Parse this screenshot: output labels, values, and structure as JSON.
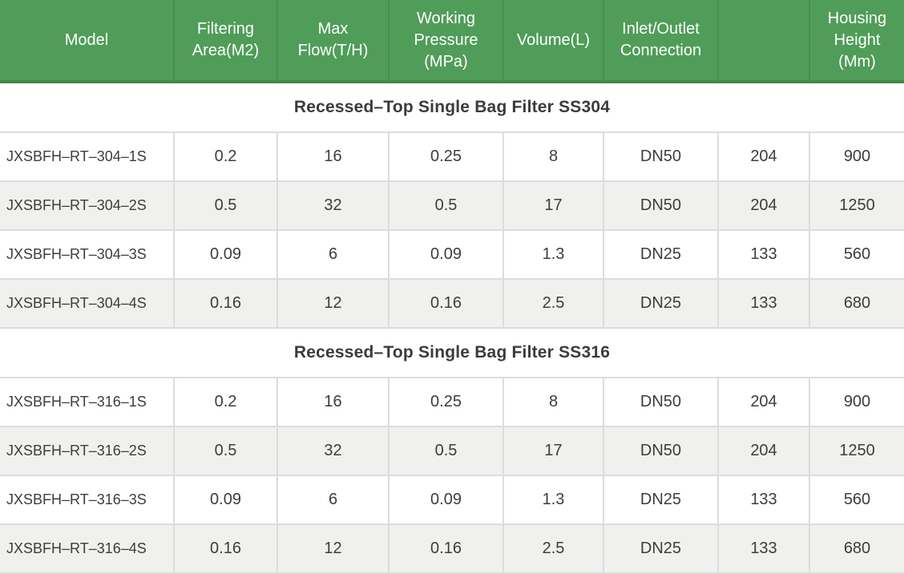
{
  "table": {
    "columns": [
      {
        "label": "Model"
      },
      {
        "label": "Filtering Area(M2)"
      },
      {
        "label": "Max Flow(T/H)"
      },
      {
        "label": "Working Pressure (MPa)"
      },
      {
        "label": "Volume(L)"
      },
      {
        "label": "Inlet/Outlet Connection"
      },
      {
        "label": ""
      },
      {
        "label": "Housing Height (Mm)"
      }
    ],
    "sections": [
      {
        "title": "Recessed–Top Single Bag Filter SS304",
        "rows": [
          [
            "JXSBFH–RT–304–1S",
            "0.2",
            "16",
            "0.25",
            "8",
            "DN50",
            "204",
            "900"
          ],
          [
            "JXSBFH–RT–304–2S",
            "0.5",
            "32",
            "0.5",
            "17",
            "DN50",
            "204",
            "1250"
          ],
          [
            "JXSBFH–RT–304–3S",
            "0.09",
            "6",
            "0.09",
            "1.3",
            "DN25",
            "133",
            "560"
          ],
          [
            "JXSBFH–RT–304–4S",
            "0.16",
            "12",
            "0.16",
            "2.5",
            "DN25",
            "133",
            "680"
          ]
        ]
      },
      {
        "title": "Recessed–Top Single Bag Filter SS316",
        "rows": [
          [
            "JXSBFH–RT–316–1S",
            "0.2",
            "16",
            "0.25",
            "8",
            "DN50",
            "204",
            "900"
          ],
          [
            "JXSBFH–RT–316–2S",
            "0.5",
            "32",
            "0.5",
            "17",
            "DN50",
            "204",
            "1250"
          ],
          [
            "JXSBFH–RT–316–3S",
            "0.09",
            "6",
            "0.09",
            "1.3",
            "DN25",
            "133",
            "560"
          ],
          [
            "JXSBFH–RT–316–4S",
            "0.16",
            "12",
            "0.16",
            "2.5",
            "DN25",
            "133",
            "680"
          ]
        ]
      }
    ]
  },
  "colors": {
    "header_bg": "#4f9d58",
    "header_divider": "#459150",
    "header_bottom_border": "#3f8a47",
    "header_text": "#ffffff",
    "row_alt_bg": "#f0f0ee",
    "grid_border": "#dcdcdc",
    "body_text": "#3d3d3d"
  }
}
